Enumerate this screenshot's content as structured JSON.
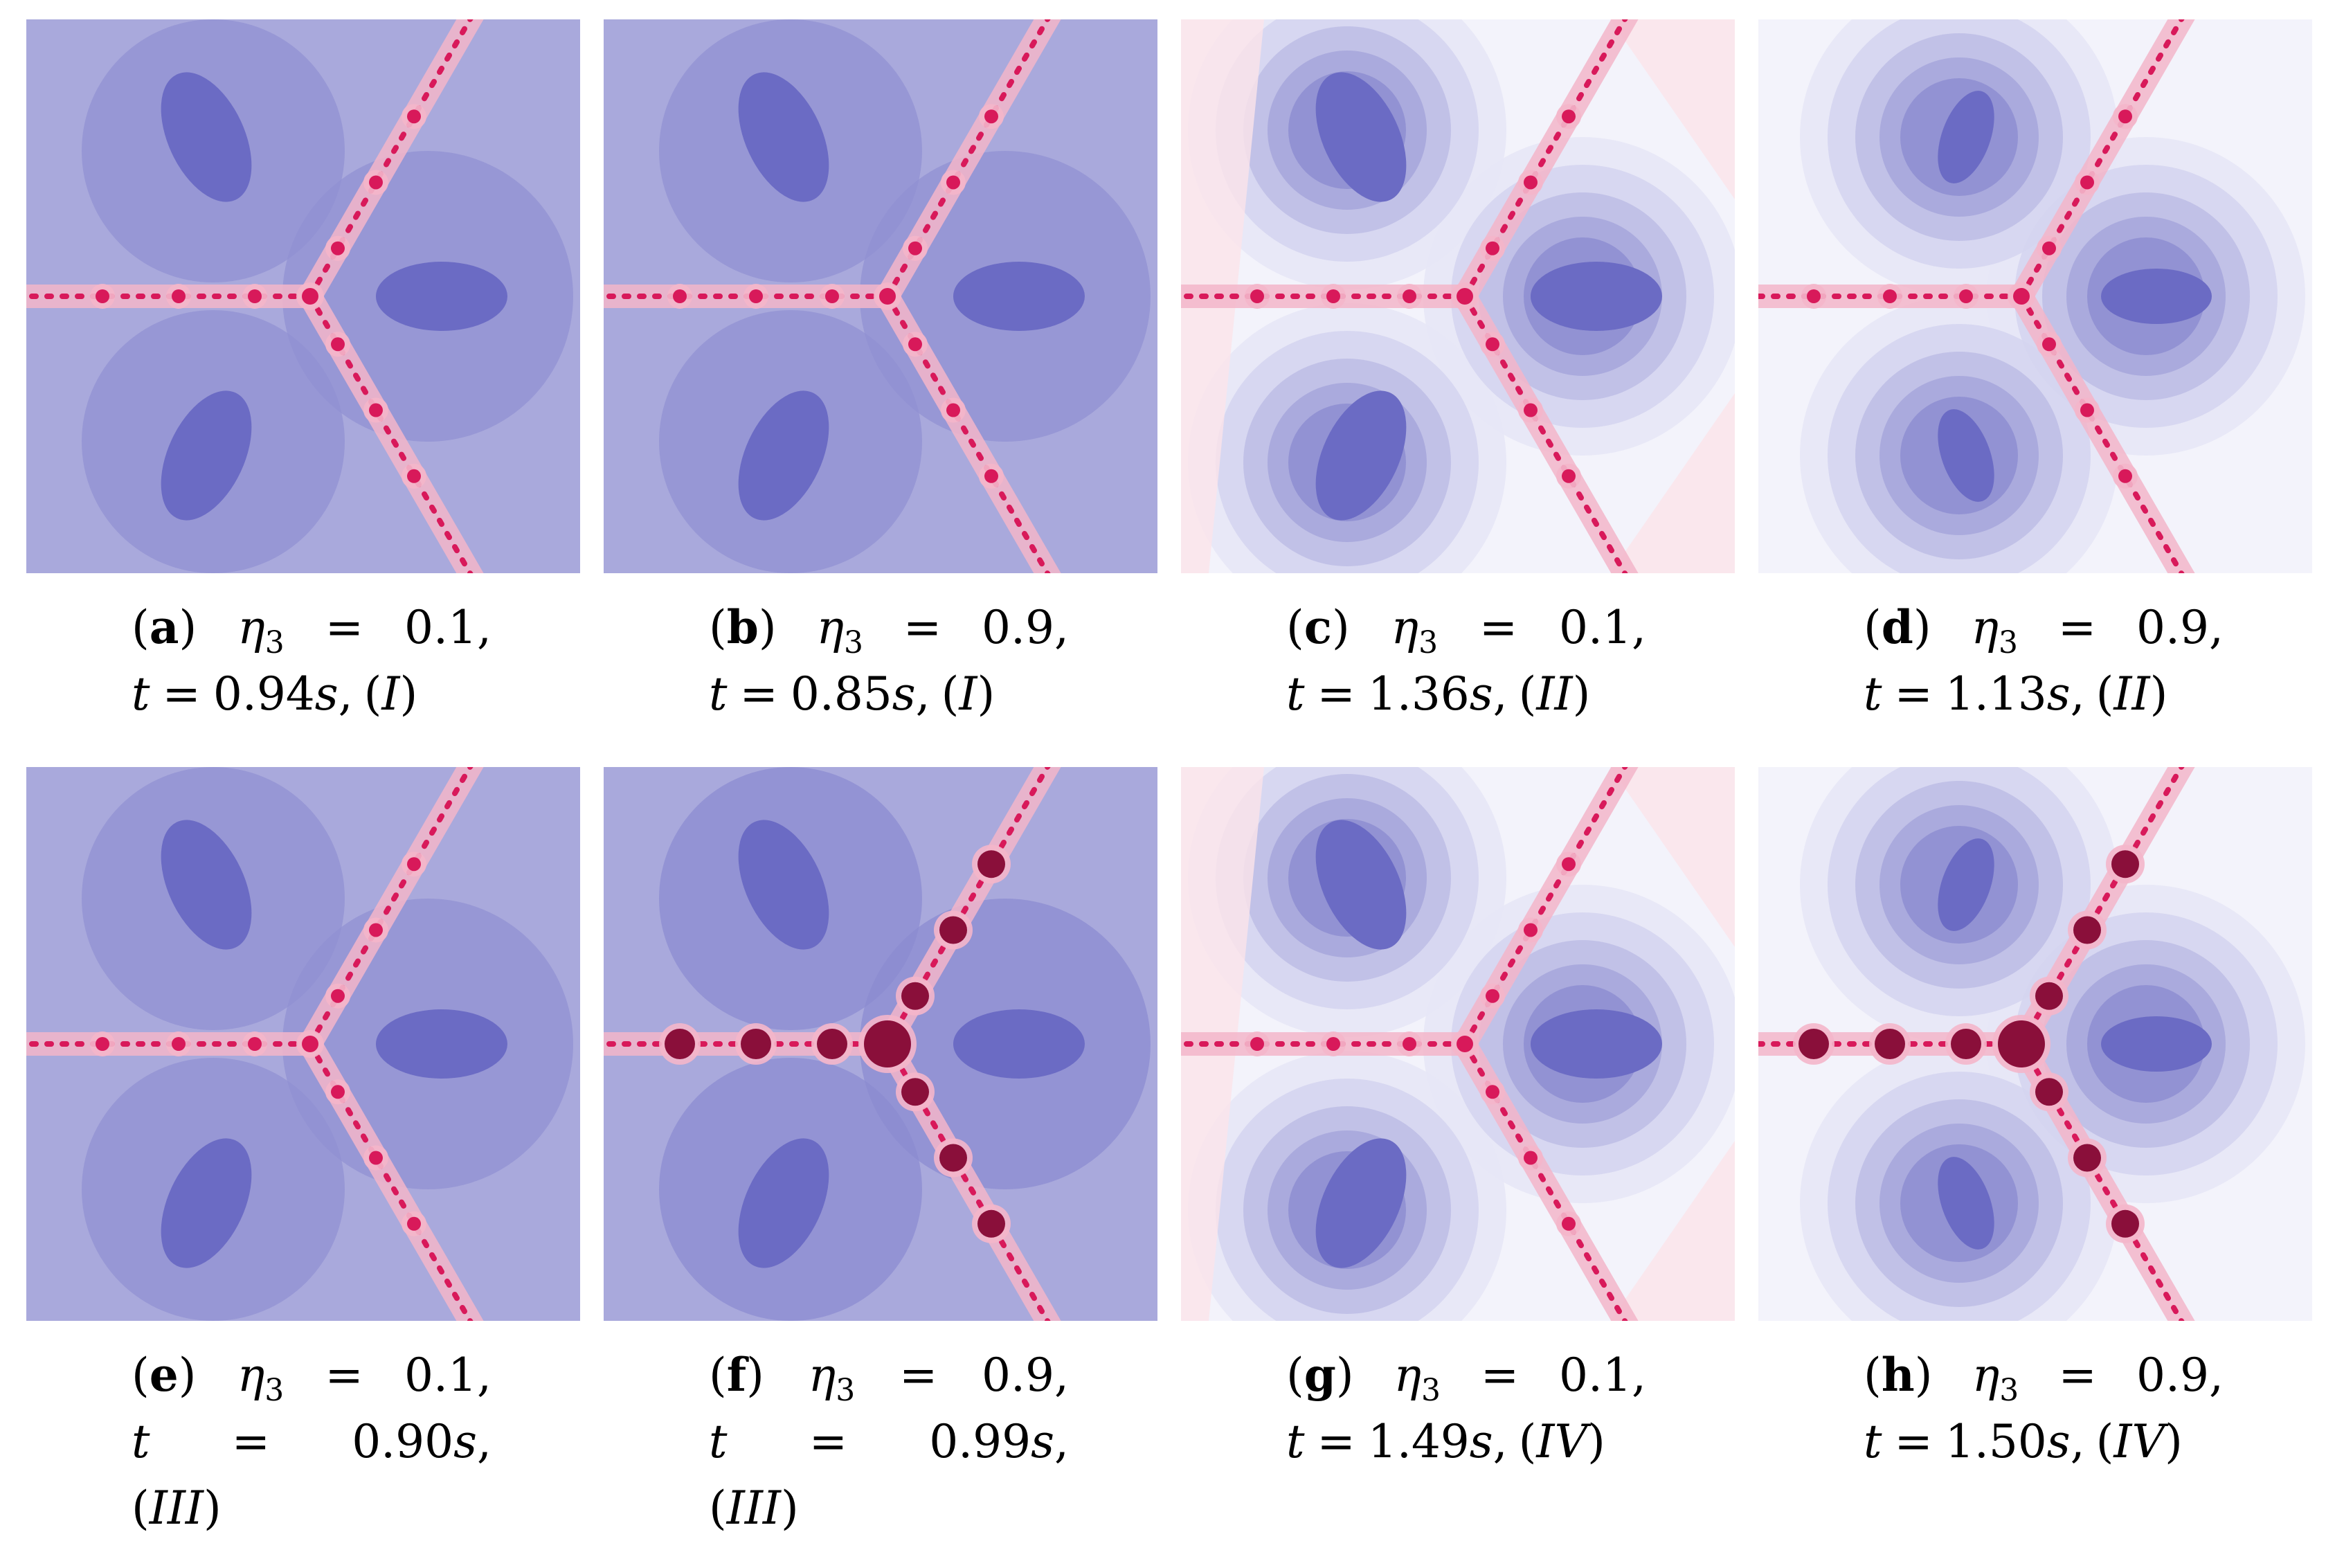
{
  "figure": {
    "panels": [
      {
        "id": "a",
        "label": "a",
        "eta_symbol": "η",
        "eta_sub": "3",
        "eq": "=",
        "eta_value": "0.1,",
        "t_symbol": "t",
        "t_eq": "=",
        "t_value": "0.94",
        "t_unit": "s",
        "case": "I",
        "style": "violet"
      },
      {
        "id": "b",
        "label": "b",
        "eta_symbol": "η",
        "eta_sub": "3",
        "eq": "=",
        "eta_value": "0.9,",
        "t_symbol": "t",
        "t_eq": "=",
        "t_value": "0.85",
        "t_unit": "s",
        "case": "I",
        "style": "violet"
      },
      {
        "id": "c",
        "label": "c",
        "eta_symbol": "η",
        "eta_sub": "3",
        "eq": "=",
        "eta_value": "0.1,",
        "t_symbol": "t",
        "t_eq": "=",
        "t_value": "1.36",
        "t_unit": "s",
        "case": "II",
        "style": "light"
      },
      {
        "id": "d",
        "label": "d",
        "eta_symbol": "η",
        "eta_sub": "3",
        "eq": "=",
        "eta_value": "0.9,",
        "t_symbol": "t",
        "t_eq": "=",
        "t_value": "1.13",
        "t_unit": "s",
        "case": "II",
        "style": "lightsym"
      },
      {
        "id": "e",
        "label": "e",
        "eta_symbol": "η",
        "eta_sub": "3",
        "eq": "=",
        "eta_value": "0.1,",
        "t_symbol": "t",
        "t_eq": "=",
        "t_value": "0.90",
        "t_unit": "s",
        "case": "III",
        "style": "violet"
      },
      {
        "id": "f",
        "label": "f",
        "eta_symbol": "η",
        "eta_sub": "3",
        "eq": "=",
        "eta_value": "0.9,",
        "t_symbol": "t",
        "t_eq": "=",
        "t_value": "0.99",
        "t_unit": "s",
        "case": "III",
        "style": "violetdark"
      },
      {
        "id": "g",
        "label": "g",
        "eta_symbol": "η",
        "eta_sub": "3",
        "eq": "=",
        "eta_value": "0.1,",
        "t_symbol": "t",
        "t_eq": "=",
        "t_value": "1.49",
        "t_unit": "s",
        "case": "IV",
        "style": "light"
      },
      {
        "id": "h",
        "label": "h",
        "eta_symbol": "η",
        "eta_sub": "3",
        "eq": "=",
        "eta_value": "0.9,",
        "t_symbol": "t",
        "t_eq": "=",
        "t_value": "1.50",
        "t_unit": "s",
        "case": "IV",
        "style": "lightsymdark"
      }
    ],
    "colors": {
      "basin_dark": "#6b6bc4",
      "basin_mid": "#9090d2",
      "background_violet": "#a9a9dc",
      "background_light": "#f3f3fb",
      "julia_red": "#d8195a",
      "julia_pink": "#f4b6ca"
    }
  }
}
